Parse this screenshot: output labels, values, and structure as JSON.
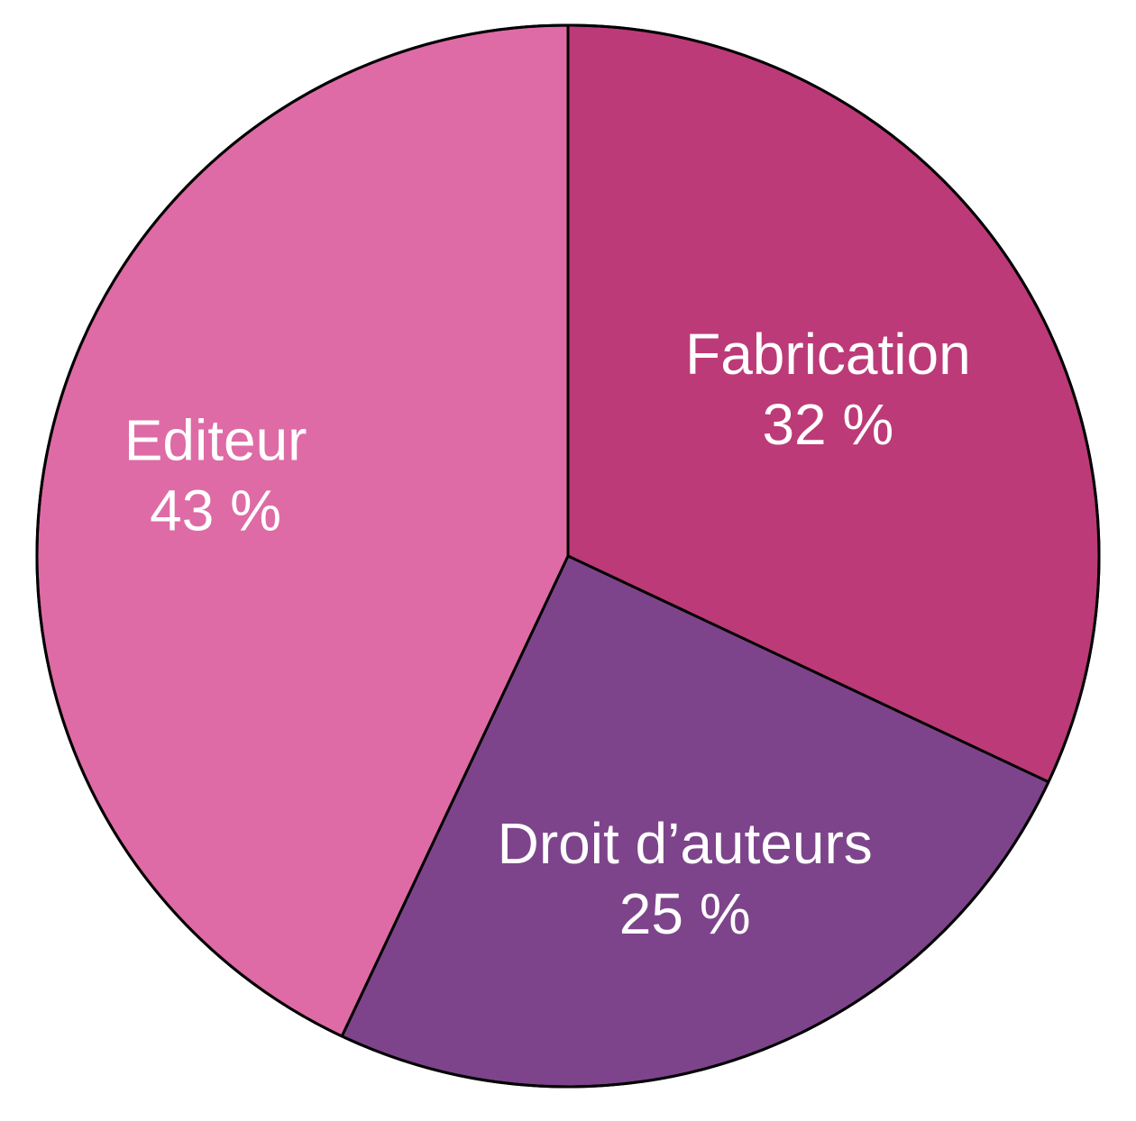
{
  "chart_data": {
    "type": "pie",
    "start_angle_deg": 90,
    "direction": "clockwise",
    "slices": [
      {
        "label": "Fabrication",
        "value": 32,
        "value_label": "32 %",
        "color": "#BC3A78"
      },
      {
        "label": "Droit d’auteurs",
        "value": 25,
        "value_label": "25 %",
        "color": "#7D448B"
      },
      {
        "label": "Editeur",
        "value": 43,
        "value_label": "43 %",
        "color": "#DE6BA5"
      }
    ]
  }
}
